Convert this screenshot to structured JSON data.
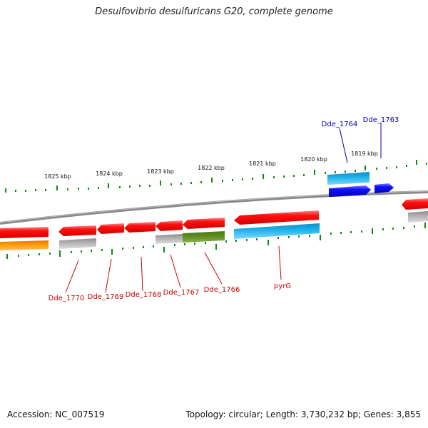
{
  "header": {
    "title": "Desulfovibrio desulfuricans G20, complete genome"
  },
  "footer": {
    "accession": "Accession: NC_007519",
    "summary": "Topology: circular; Length: 3,730,232 bp; Genes: 3,855"
  },
  "scale": {
    "tick_labels": [
      "1825 kbp",
      "1824 kbp",
      "1823 kbp",
      "1822 kbp",
      "1821 kbp",
      "1820 kbp",
      "1819 kbp"
    ]
  },
  "genes": {
    "lower_labels": [
      "Dde_1770",
      "Dde_1769",
      "Dde_1768",
      "Dde_1767",
      "Dde_1766",
      "pyrG"
    ],
    "upper_labels": [
      "Dde_1764",
      "Dde_1763"
    ]
  },
  "colors": {
    "backbone": "#808080",
    "gene_red": "#ee0000",
    "gene_blue": "#0000ee",
    "gene_cyan": "#1ab0ea",
    "gene_orange": "#ff9900",
    "gene_grey": "#b0b0b0",
    "gene_olive": "#5a8a1e",
    "ticks": "#118811",
    "label_red": "#cc0000",
    "label_blue": "#0000aa"
  }
}
